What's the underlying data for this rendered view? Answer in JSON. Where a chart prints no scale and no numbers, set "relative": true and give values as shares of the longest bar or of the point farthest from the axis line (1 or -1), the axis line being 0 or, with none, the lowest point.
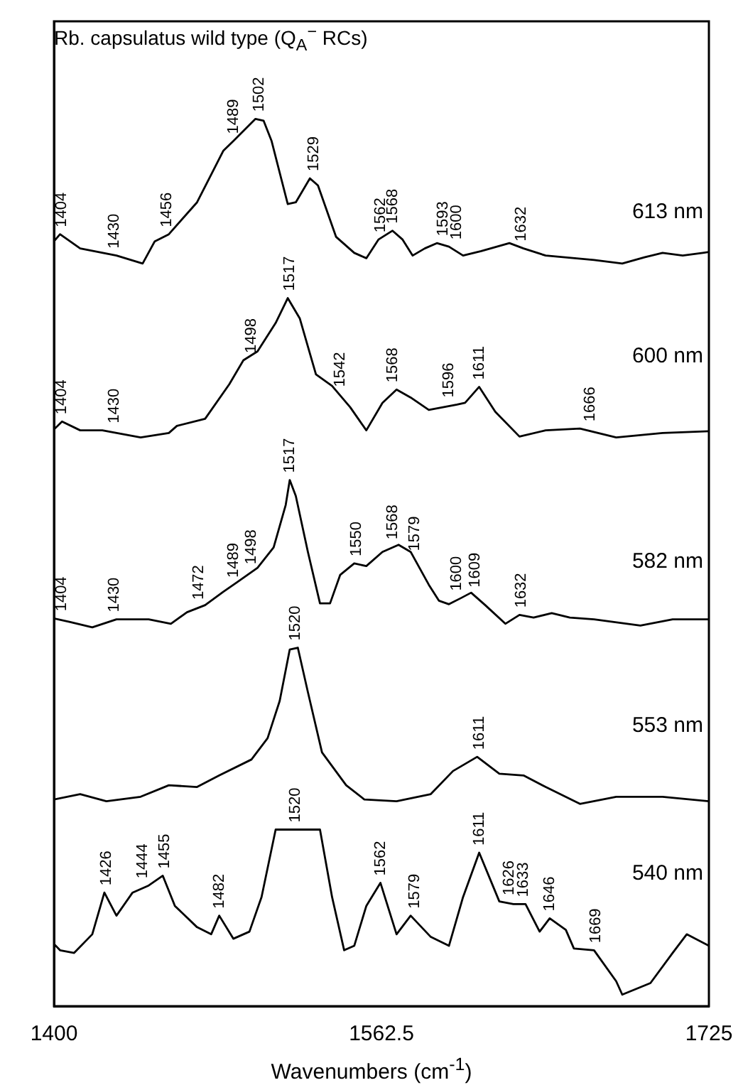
{
  "chart_data": {
    "type": "line",
    "title": "Rb. capsulatus wild type (Q$_{A}$$^{−}$ RCs)",
    "xlabel": "Wavenumbers (cm$^{-1}$)",
    "relative": true,
    "xlim": [
      1400,
      1725
    ],
    "xticks": [
      1400,
      1562.5,
      1725
    ],
    "grid": false,
    "legend": false,
    "marker": "none",
    "line_style": "solid",
    "series": [
      {
        "name": "613 nm",
        "color": "#000000",
        "x": [
          1400,
          1403,
          1413,
          1431,
          1444,
          1450,
          1457,
          1471,
          1484,
          1489,
          1500,
          1504,
          1508,
          1516,
          1520,
          1527,
          1531,
          1540,
          1549,
          1555,
          1561,
          1568,
          1573,
          1578,
          1584,
          1590,
          1596,
          1603,
          1612,
          1626,
          1633,
          1644,
          1668,
          1682,
          1693,
          1702,
          1712,
          1722,
          1725
        ],
        "values": [
          0.862,
          0.87,
          0.854,
          0.846,
          0.837,
          0.862,
          0.87,
          0.906,
          0.964,
          0.975,
          1.0,
          0.998,
          0.975,
          0.904,
          0.906,
          0.933,
          0.925,
          0.867,
          0.849,
          0.843,
          0.864,
          0.874,
          0.864,
          0.846,
          0.854,
          0.86,
          0.856,
          0.846,
          0.851,
          0.86,
          0.854,
          0.846,
          0.841,
          0.837,
          0.844,
          0.849,
          0.846,
          0.849,
          0.85
        ]
      },
      {
        "name": "600 nm",
        "color": "#000000",
        "x": [
          1400,
          1404,
          1413,
          1424,
          1443,
          1457,
          1461,
          1475,
          1487,
          1494,
          1501,
          1510,
          1516,
          1522,
          1530,
          1538,
          1547,
          1555,
          1563,
          1570,
          1577,
          1586,
          1600,
          1604,
          1611,
          1619,
          1631,
          1644,
          1661,
          1679,
          1702,
          1725
        ],
        "values": [
          0.65,
          0.659,
          0.649,
          0.649,
          0.641,
          0.646,
          0.654,
          0.662,
          0.701,
          0.728,
          0.738,
          0.77,
          0.798,
          0.775,
          0.712,
          0.699,
          0.675,
          0.649,
          0.68,
          0.695,
          0.686,
          0.672,
          0.678,
          0.68,
          0.698,
          0.67,
          0.642,
          0.649,
          0.651,
          0.641,
          0.646,
          0.648
        ]
      },
      {
        "name": "582 nm",
        "color": "#000000",
        "x": [
          1400,
          1408,
          1419,
          1431,
          1447,
          1458,
          1466,
          1475,
          1484,
          1491,
          1501,
          1509,
          1515,
          1517,
          1520,
          1526,
          1532,
          1537,
          1542,
          1549,
          1555,
          1563,
          1571,
          1577,
          1586,
          1591,
          1596,
          1602,
          1607,
          1614,
          1624,
          1631,
          1638,
          1647,
          1656,
          1668,
          1691,
          1707,
          1725
        ],
        "values": [
          0.437,
          0.433,
          0.427,
          0.436,
          0.436,
          0.431,
          0.444,
          0.452,
          0.467,
          0.478,
          0.494,
          0.517,
          0.565,
          0.593,
          0.575,
          0.512,
          0.454,
          0.454,
          0.486,
          0.499,
          0.496,
          0.512,
          0.52,
          0.512,
          0.475,
          0.457,
          0.453,
          0.46,
          0.466,
          0.452,
          0.431,
          0.441,
          0.438,
          0.443,
          0.438,
          0.436,
          0.429,
          0.436,
          0.436
        ]
      },
      {
        "name": "553 nm",
        "color": "#000000",
        "x": [
          1400,
          1413,
          1426,
          1443,
          1457,
          1471,
          1482,
          1498,
          1506,
          1512,
          1517,
          1521,
          1526,
          1533,
          1545,
          1554,
          1570,
          1587,
          1598,
          1610,
          1621,
          1633,
          1644,
          1661,
          1679,
          1702,
          1725
        ],
        "values": [
          0.233,
          0.239,
          0.231,
          0.236,
          0.249,
          0.247,
          0.26,
          0.278,
          0.302,
          0.344,
          0.402,
          0.404,
          0.354,
          0.286,
          0.249,
          0.233,
          0.231,
          0.239,
          0.265,
          0.281,
          0.262,
          0.26,
          0.247,
          0.228,
          0.236,
          0.236,
          0.231
        ]
      },
      {
        "name": "540 nm",
        "color": "#000000",
        "x": [
          1400,
          1403,
          1410,
          1419,
          1425,
          1431,
          1439,
          1447,
          1454,
          1460,
          1471,
          1478,
          1482,
          1489,
          1497,
          1503,
          1510,
          1532,
          1538,
          1544,
          1549,
          1555,
          1562,
          1570,
          1577,
          1587,
          1596,
          1603,
          1611,
          1621,
          1628,
          1634,
          1641,
          1646,
          1654,
          1658,
          1668,
          1679,
          1682,
          1696,
          1707,
          1714,
          1725
        ],
        "values": [
          0.07,
          0.063,
          0.06,
          0.081,
          0.128,
          0.102,
          0.128,
          0.136,
          0.147,
          0.113,
          0.089,
          0.081,
          0.102,
          0.076,
          0.084,
          0.123,
          0.199,
          0.199,
          0.123,
          0.063,
          0.068,
          0.113,
          0.139,
          0.081,
          0.102,
          0.078,
          0.068,
          0.123,
          0.173,
          0.118,
          0.115,
          0.115,
          0.084,
          0.099,
          0.086,
          0.065,
          0.063,
          0.028,
          0.013,
          0.026,
          0.06,
          0.081,
          0.068
        ]
      }
    ],
    "annotations": [
      {
        "text": "1404",
        "x": 1404,
        "y": 0.87
      },
      {
        "text": "1430",
        "x": 1430,
        "y": 0.846
      },
      {
        "text": "1456",
        "x": 1456,
        "y": 0.87
      },
      {
        "text": "1489",
        "x": 1489,
        "y": 0.975
      },
      {
        "text": "1502",
        "x": 1502,
        "y": 1.0
      },
      {
        "text": "1529",
        "x": 1529,
        "y": 0.933
      },
      {
        "text": "1562",
        "x": 1562,
        "y": 0.864
      },
      {
        "text": "1568",
        "x": 1568,
        "y": 0.874
      },
      {
        "text": "1593",
        "x": 1593,
        "y": 0.86
      },
      {
        "text": "1600",
        "x": 1600,
        "y": 0.856
      },
      {
        "text": "1632",
        "x": 1632,
        "y": 0.854
      },
      {
        "text": "1404",
        "x": 1404,
        "y": 0.659
      },
      {
        "text": "1430",
        "x": 1430,
        "y": 0.649
      },
      {
        "text": "1498",
        "x": 1498,
        "y": 0.728
      },
      {
        "text": "1517",
        "x": 1517,
        "y": 0.798
      },
      {
        "text": "1542",
        "x": 1542,
        "y": 0.69
      },
      {
        "text": "1568",
        "x": 1568,
        "y": 0.695
      },
      {
        "text": "1596",
        "x": 1596,
        "y": 0.678
      },
      {
        "text": "1611",
        "x": 1611,
        "y": 0.698
      },
      {
        "text": "1666",
        "x": 1666,
        "y": 0.651
      },
      {
        "text": "1404",
        "x": 1404,
        "y": 0.437
      },
      {
        "text": "1430",
        "x": 1430,
        "y": 0.436
      },
      {
        "text": "1472",
        "x": 1472,
        "y": 0.45
      },
      {
        "text": "1489",
        "x": 1489,
        "y": 0.475
      },
      {
        "text": "1498",
        "x": 1498,
        "y": 0.49
      },
      {
        "text": "1517",
        "x": 1517,
        "y": 0.593
      },
      {
        "text": "1550",
        "x": 1550,
        "y": 0.499
      },
      {
        "text": "1568",
        "x": 1568,
        "y": 0.518
      },
      {
        "text": "1579",
        "x": 1579,
        "y": 0.505
      },
      {
        "text": "1600",
        "x": 1600,
        "y": 0.46
      },
      {
        "text": "1609",
        "x": 1609,
        "y": 0.464
      },
      {
        "text": "1632",
        "x": 1632,
        "y": 0.441
      },
      {
        "text": "1520",
        "x": 1520,
        "y": 0.404
      },
      {
        "text": "1611",
        "x": 1611,
        "y": 0.281
      },
      {
        "text": "1426",
        "x": 1426,
        "y": 0.128
      },
      {
        "text": "1444",
        "x": 1444,
        "y": 0.136
      },
      {
        "text": "1455",
        "x": 1455,
        "y": 0.147
      },
      {
        "text": "1482",
        "x": 1482,
        "y": 0.102
      },
      {
        "text": "1520",
        "x": 1520,
        "y": 0.199
      },
      {
        "text": "1562",
        "x": 1562,
        "y": 0.139
      },
      {
        "text": "1579",
        "x": 1579,
        "y": 0.102
      },
      {
        "text": "1611",
        "x": 1611,
        "y": 0.173
      },
      {
        "text": "1626",
        "x": 1626,
        "y": 0.117
      },
      {
        "text": "1633",
        "x": 1633,
        "y": 0.115
      },
      {
        "text": "1646",
        "x": 1646,
        "y": 0.099
      },
      {
        "text": "1669",
        "x": 1669,
        "y": 0.063
      }
    ]
  }
}
